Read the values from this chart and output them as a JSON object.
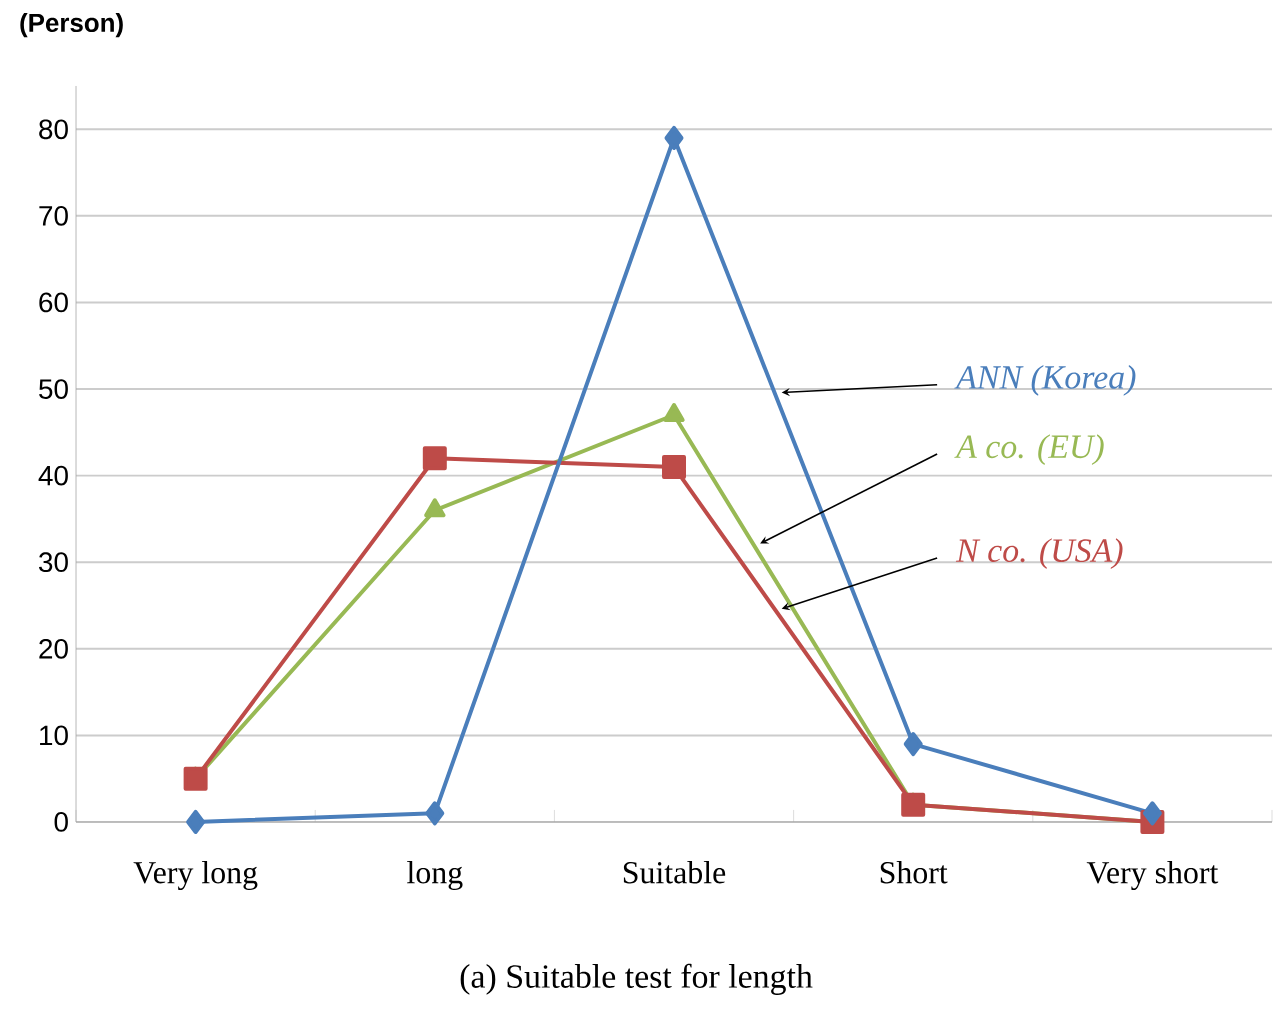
{
  "chart_data": {
    "type": "line",
    "title": "(a)  Suitable test for length",
    "ylabel": "(Person)",
    "categories": [
      "Very long",
      "long",
      "Suitable",
      "Short",
      "Very short"
    ],
    "series": [
      {
        "name": "ANN (Korea)",
        "color": "#4a7ebb",
        "marker": "diamond",
        "values": [
          0,
          1,
          79,
          9,
          1
        ]
      },
      {
        "name": "N co. (USA)",
        "color": "#be4b48",
        "marker": "square",
        "values": [
          5,
          42,
          41,
          2,
          0
        ]
      },
      {
        "name": "A co. (EU)",
        "color": "#98b954",
        "marker": "triangle",
        "values": [
          5,
          36,
          47,
          2,
          0
        ]
      }
    ],
    "ylim": [
      0,
      85
    ],
    "yticks": [
      0,
      10,
      20,
      30,
      40,
      50,
      60,
      70,
      80
    ],
    "grid": "y",
    "legend": false,
    "line_style": "solid"
  }
}
